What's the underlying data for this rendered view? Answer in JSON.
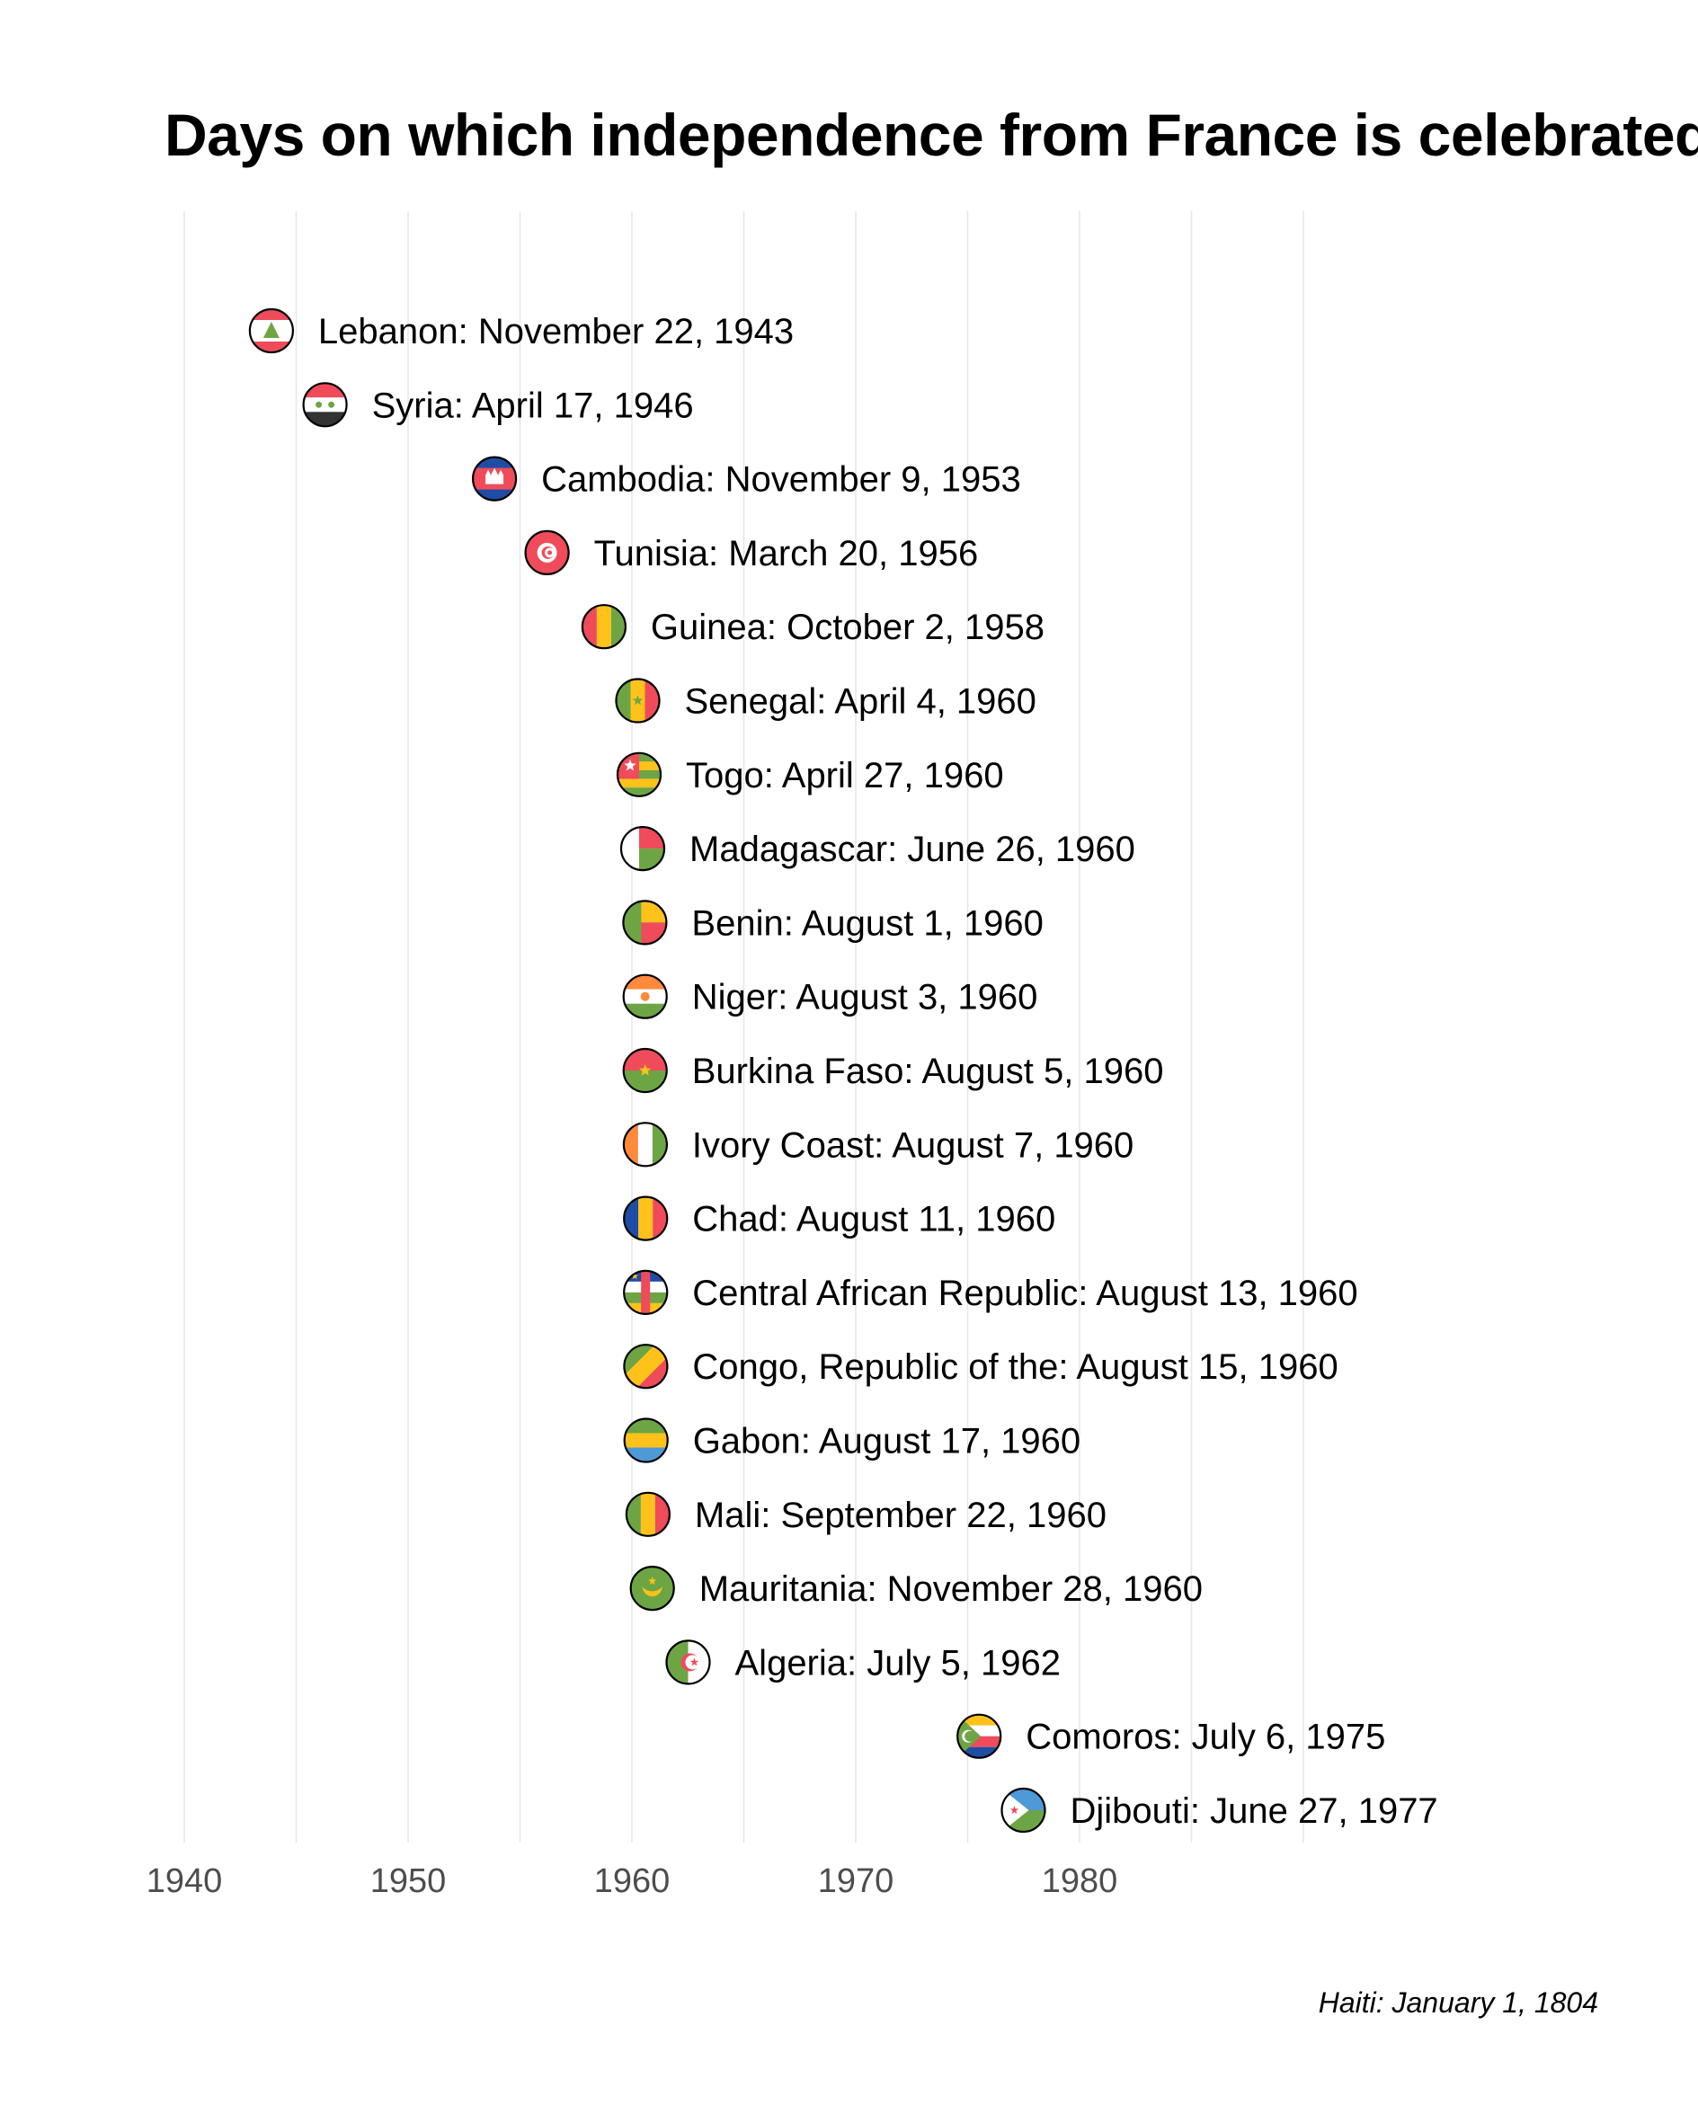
{
  "chart_data": {
    "type": "scatter",
    "title": "Days on which independence from France is celebrated",
    "note": "Haiti: January 1, 1804",
    "x_ticks": [
      1940,
      1950,
      1960,
      1970,
      1980
    ],
    "xlim": [
      1939.2,
      1990.6
    ],
    "grid": "vertical-major-and-minor",
    "points": [
      {
        "country": "Lebanon",
        "date": "1943-11-22",
        "x": 1943.89,
        "label": "Lebanon: November 22, 1943",
        "flag": "lebanon-flag-icon"
      },
      {
        "country": "Syria",
        "date": "1946-04-17",
        "x": 1946.29,
        "label": "Syria: April 17, 1946",
        "flag": "syria-flag-icon"
      },
      {
        "country": "Cambodia",
        "date": "1953-11-09",
        "x": 1953.86,
        "label": "Cambodia: November 9, 1953",
        "flag": "cambodia-flag-icon"
      },
      {
        "country": "Tunisia",
        "date": "1956-03-20",
        "x": 1956.21,
        "label": "Tunisia: March 20, 1956",
        "flag": "tunisia-flag-icon"
      },
      {
        "country": "Guinea",
        "date": "1958-10-02",
        "x": 1958.75,
        "label": "Guinea: October 2, 1958",
        "flag": "guinea-flag-icon"
      },
      {
        "country": "Senegal",
        "date": "1960-04-04",
        "x": 1960.26,
        "label": "Senegal: April 4, 1960",
        "flag": "senegal-flag-icon"
      },
      {
        "country": "Togo",
        "date": "1960-04-27",
        "x": 1960.32,
        "label": "Togo: April 27, 1960",
        "flag": "togo-flag-icon"
      },
      {
        "country": "Madagascar",
        "date": "1960-06-26",
        "x": 1960.48,
        "label": "Madagascar: June 26, 1960",
        "flag": "madagascar-flag-icon"
      },
      {
        "country": "Benin",
        "date": "1960-08-01",
        "x": 1960.58,
        "label": "Benin: August 1, 1960",
        "flag": "benin-flag-icon"
      },
      {
        "country": "Niger",
        "date": "1960-08-03",
        "x": 1960.59,
        "label": "Niger: August 3, 1960",
        "flag": "niger-flag-icon"
      },
      {
        "country": "Burkina Faso",
        "date": "1960-08-05",
        "x": 1960.59,
        "label": "Burkina Faso: August 5, 1960",
        "flag": "burkina-faso-flag-icon"
      },
      {
        "country": "Ivory Coast",
        "date": "1960-08-07",
        "x": 1960.6,
        "label": "Ivory Coast: August 7, 1960",
        "flag": "ivory-coast-flag-icon"
      },
      {
        "country": "Chad",
        "date": "1960-08-11",
        "x": 1960.61,
        "label": "Chad: August 11, 1960",
        "flag": "chad-flag-icon"
      },
      {
        "country": "Central African Republic",
        "date": "1960-08-13",
        "x": 1960.61,
        "label": "Central African Republic: August 13, 1960",
        "flag": "central-african-republic-flag-icon"
      },
      {
        "country": "Congo, Republic of the",
        "date": "1960-08-15",
        "x": 1960.62,
        "label": "Congo, Republic of the: August 15, 1960",
        "flag": "congo-flag-icon"
      },
      {
        "country": "Gabon",
        "date": "1960-08-17",
        "x": 1960.63,
        "label": "Gabon: August 17, 1960",
        "flag": "gabon-flag-icon"
      },
      {
        "country": "Mali",
        "date": "1960-09-22",
        "x": 1960.72,
        "label": "Mali: September 22, 1960",
        "flag": "mali-flag-icon"
      },
      {
        "country": "Mauritania",
        "date": "1960-11-28",
        "x": 1960.91,
        "label": "Mauritania: November 28, 1960",
        "flag": "mauritania-flag-icon"
      },
      {
        "country": "Algeria",
        "date": "1962-07-05",
        "x": 1962.51,
        "label": "Algeria: July 5, 1962",
        "flag": "algeria-flag-icon"
      },
      {
        "country": "Comoros",
        "date": "1975-07-06",
        "x": 1975.51,
        "label": "Comoros: July 6, 1975",
        "flag": "comoros-flag-icon"
      },
      {
        "country": "Djibouti",
        "date": "1977-06-27",
        "x": 1977.49,
        "label": "Djibouti: June 27, 1977",
        "flag": "djibouti-flag-icon"
      }
    ],
    "colors": {
      "text": "#000000",
      "tick_text": "#4d4d4d",
      "grid": "#e6e6e6",
      "flag_red": "#ef4b5a",
      "flag_green": "#6da544",
      "flag_yellow": "#ffc21a",
      "flag_blue": "#1f4da5",
      "flag_light_blue": "#4e9ad6",
      "flag_dark": "#333333",
      "flag_orange": "#ff8a3c"
    }
  }
}
